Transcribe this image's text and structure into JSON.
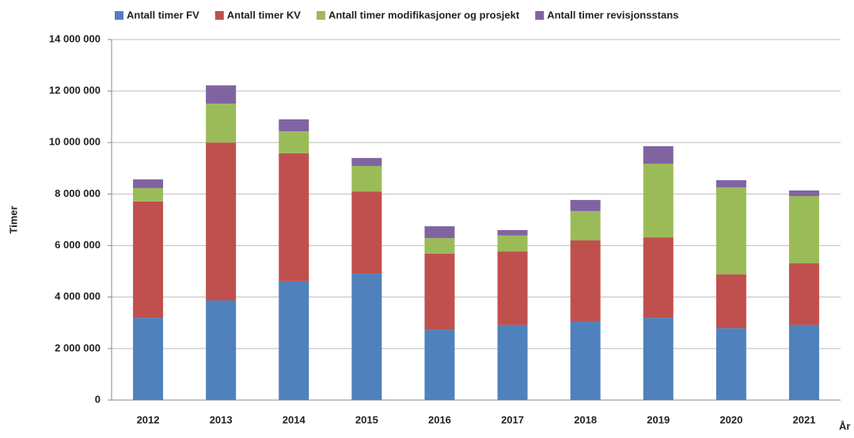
{
  "chart_data": {
    "type": "stacked-bar",
    "y_label": "Timer",
    "x_label": "År",
    "categories": [
      "2012",
      "2013",
      "2014",
      "2015",
      "2016",
      "2017",
      "2018",
      "2019",
      "2020",
      "2021"
    ],
    "series": [
      {
        "name": "Antall timer FV",
        "color": "#4f81bd",
        "values": [
          3190000,
          3870000,
          4610000,
          4910000,
          2730000,
          2920000,
          3070000,
          3190000,
          2790000,
          2920000
        ]
      },
      {
        "name": "Antall timer KV",
        "color": "#c0504d",
        "values": [
          4520000,
          6130000,
          4970000,
          3190000,
          2950000,
          2850000,
          3130000,
          3130000,
          2090000,
          2390000
        ]
      },
      {
        "name": "Antall timer modifikasjoner og prosjekt",
        "color": "#9bbb59",
        "values": [
          520000,
          1510000,
          860000,
          990000,
          610000,
          620000,
          1140000,
          2860000,
          3380000,
          2610000
        ]
      },
      {
        "name": "Antall timer revisjonsstans",
        "color": "#8064a2",
        "values": [
          340000,
          710000,
          460000,
          310000,
          460000,
          210000,
          430000,
          680000,
          280000,
          220000
        ]
      }
    ],
    "ylim": [
      0,
      14000000
    ],
    "yticks": [
      0,
      {
        "value": 2000000,
        "label": "2 000 000"
      },
      {
        "value": 4000000,
        "label": "4 000 000"
      },
      {
        "value": 6000000,
        "label": "6 000 000"
      },
      {
        "value": 8000000,
        "label": "8 000 000"
      },
      {
        "value": 10000000,
        "label": "10 000 000"
      },
      {
        "value": 12000000,
        "label": "12 000 000"
      },
      {
        "value": 14000000,
        "label": "14 000 000"
      }
    ],
    "grid": true,
    "legend": "top"
  }
}
